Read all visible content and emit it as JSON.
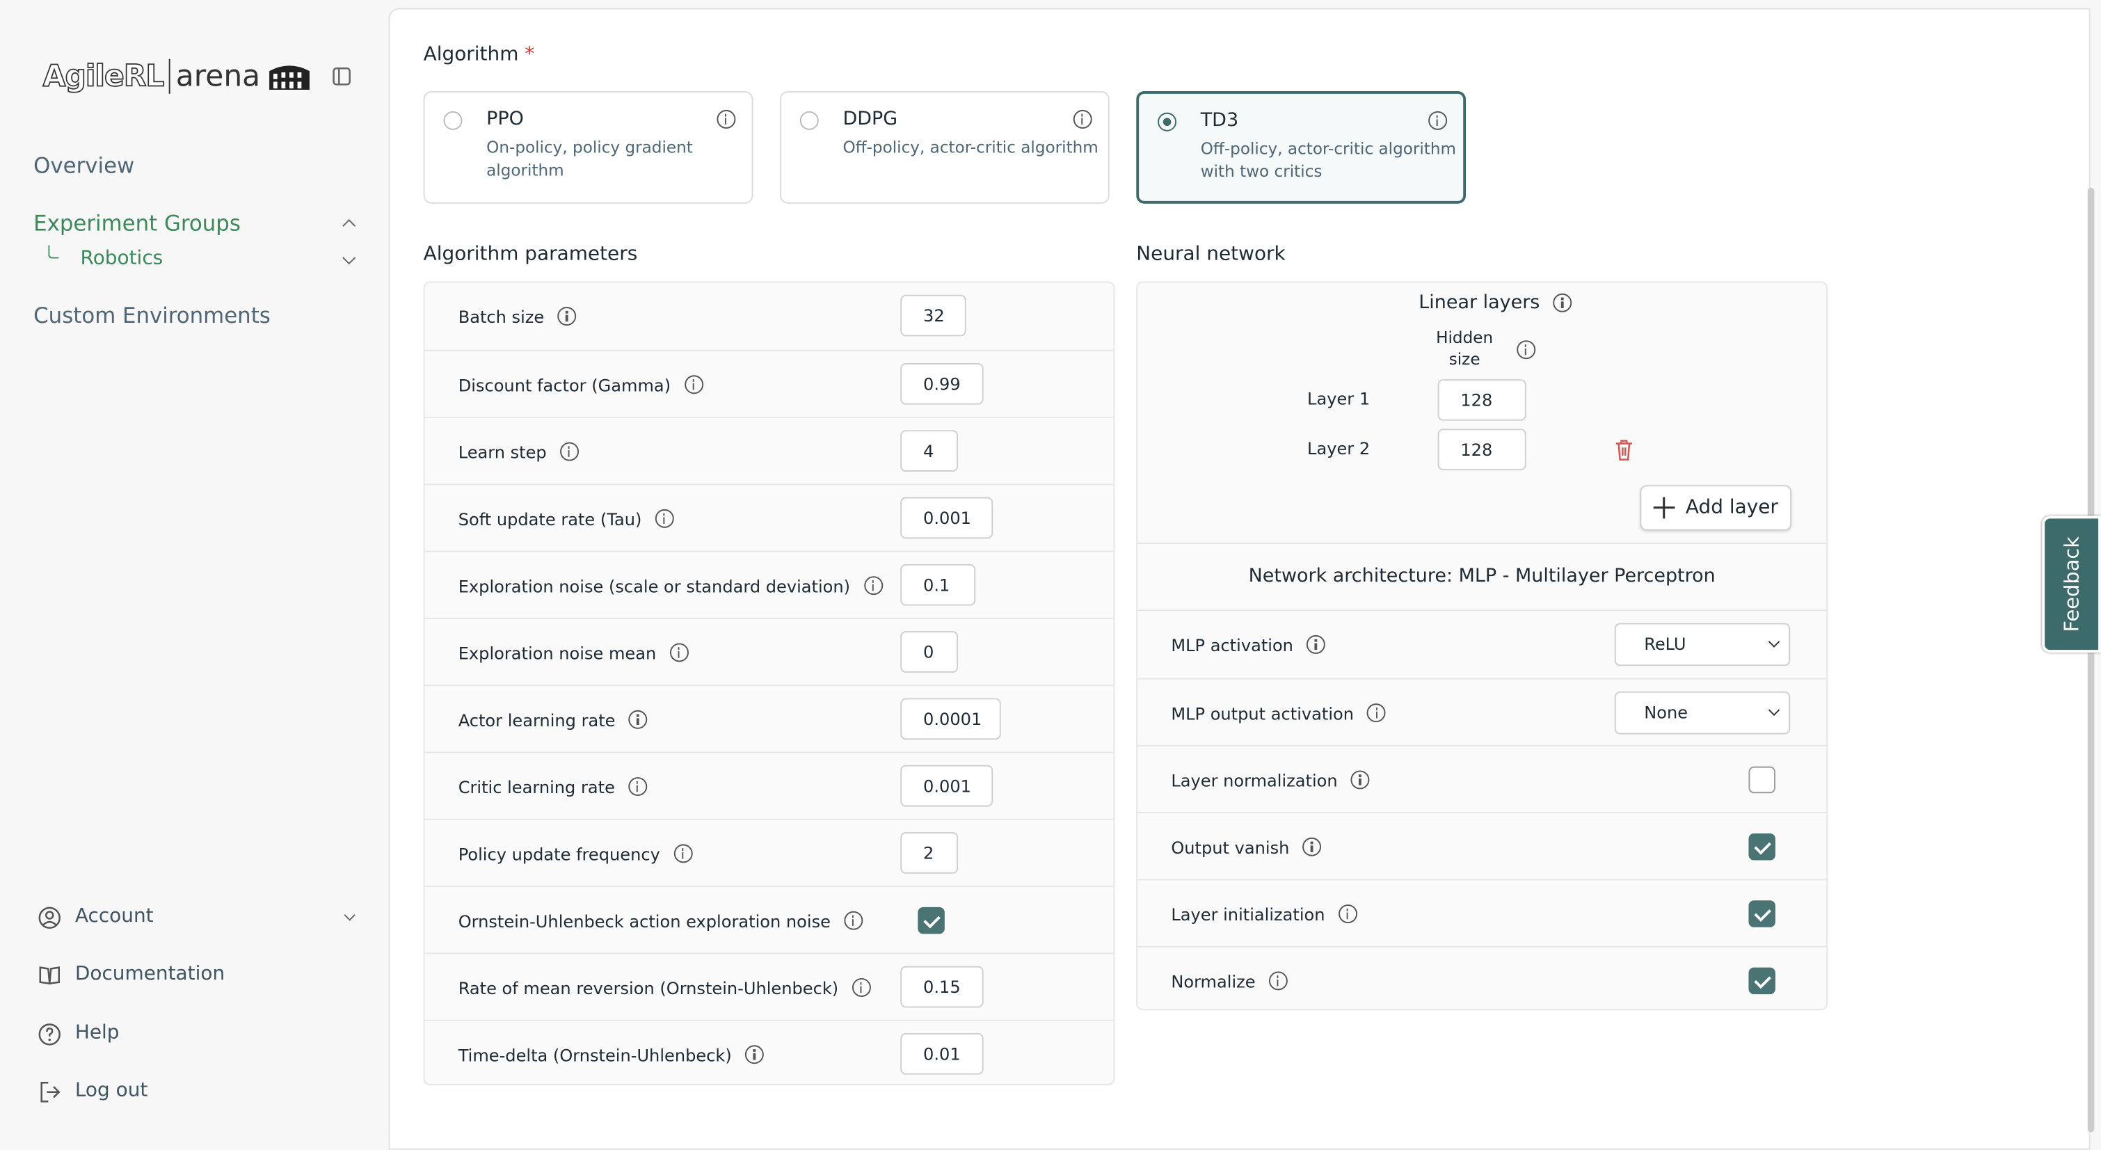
{
  "sidebar": {
    "logo_brand": "AgileRL",
    "logo_product": "arena",
    "nav": [
      {
        "label": "Overview"
      },
      {
        "label": "Experiment Groups",
        "active": true
      },
      {
        "label": "Robotics",
        "child": true
      },
      {
        "label": "Custom Environments"
      }
    ],
    "bottom": [
      "Account",
      "Documentation",
      "Help",
      "Log out"
    ]
  },
  "algorithm": {
    "label": "Algorithm",
    "required_mark": "*",
    "selected": 2,
    "options": [
      {
        "name": "PPO",
        "description": "On-policy, policy gradient algorithm"
      },
      {
        "name": "DDPG",
        "description": "Off-policy, actor-critic algorithm"
      },
      {
        "name": "TD3",
        "description": "Off-policy, actor-critic algorithm with two critics"
      }
    ]
  },
  "parameters": {
    "title": "Algorithm parameters",
    "rows": [
      {
        "label": "Batch size",
        "value": "32"
      },
      {
        "label": "Discount factor (Gamma)",
        "value": "0.99"
      },
      {
        "label": "Learn step",
        "value": "4"
      },
      {
        "label": "Soft update rate (Tau)",
        "value": "0.001"
      },
      {
        "label": "Exploration noise (scale or standard deviation)",
        "value": "0.1"
      },
      {
        "label": "Exploration noise mean",
        "value": "0"
      },
      {
        "label": "Actor learning rate",
        "value": "0.0001"
      },
      {
        "label": "Critic learning rate",
        "value": "0.001"
      },
      {
        "label": "Policy update frequency",
        "value": "2"
      },
      {
        "label": "Ornstein-Uhlenbeck action exploration noise",
        "checked": true
      },
      {
        "label": "Rate of mean reversion (Ornstein-Uhlenbeck)",
        "value": "0.15"
      },
      {
        "label": "Time-delta (Ornstein-Uhlenbeck)",
        "value": "0.01"
      }
    ]
  },
  "neural_network": {
    "title": "Neural network",
    "linear_layers": "Linear layers",
    "hidden_size": "Hidden size",
    "layers": [
      {
        "label": "Layer 1",
        "value": "128"
      },
      {
        "label": "Layer 2",
        "value": "128"
      }
    ],
    "add_layer": "Add layer",
    "architecture": "Network architecture: MLP - Multilayer Perceptron",
    "rows": [
      {
        "label": "MLP activation",
        "select": "ReLU"
      },
      {
        "label": "MLP output activation",
        "select": "None"
      },
      {
        "label": "Layer normalization",
        "checked": false
      },
      {
        "label": "Output vanish",
        "checked": true
      },
      {
        "label": "Layer initialization",
        "checked": true
      },
      {
        "label": "Normalize",
        "checked": true
      }
    ]
  },
  "feedback": "Feedback"
}
